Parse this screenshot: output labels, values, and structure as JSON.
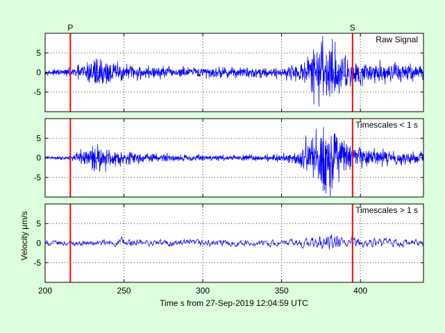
{
  "figure": {
    "background": "#ddffdd",
    "axes_background": "#ffffff",
    "signal_color": "#0000ff",
    "marker_color": "#ff0000",
    "xlabel": "Time s from 27-Sep-2019 12:04:59 UTC",
    "ylabel": "Velocity μm/s"
  },
  "chart_data": [
    {
      "type": "line",
      "title": "Raw Signal",
      "xlim": [
        200,
        440
      ],
      "ylim": [
        -10,
        10
      ],
      "xticks": [
        200,
        250,
        300,
        350,
        400
      ],
      "yticks": [
        -5,
        0,
        5
      ],
      "grid": true,
      "phase_markers": [
        {
          "label": "P",
          "x": 216
        },
        {
          "label": "S",
          "x": 395
        }
      ],
      "series": [
        {
          "envelope": [
            {
              "x": 200,
              "y": 0.5
            },
            {
              "x": 210,
              "y": 0.7
            },
            {
              "x": 218,
              "y": 1.0
            },
            {
              "x": 225,
              "y": 2.5
            },
            {
              "x": 233,
              "y": 3.8
            },
            {
              "x": 240,
              "y": 2.8
            },
            {
              "x": 250,
              "y": 2.0
            },
            {
              "x": 265,
              "y": 1.5
            },
            {
              "x": 290,
              "y": 1.3
            },
            {
              "x": 320,
              "y": 1.2
            },
            {
              "x": 350,
              "y": 1.2
            },
            {
              "x": 360,
              "y": 2.0
            },
            {
              "x": 368,
              "y": 4.5
            },
            {
              "x": 375,
              "y": 8.0
            },
            {
              "x": 380,
              "y": 9.5
            },
            {
              "x": 385,
              "y": 6.5
            },
            {
              "x": 392,
              "y": 4.0
            },
            {
              "x": 400,
              "y": 2.8
            },
            {
              "x": 420,
              "y": 2.2
            },
            {
              "x": 440,
              "y": 1.8
            }
          ]
        }
      ]
    },
    {
      "type": "line",
      "title": "Timescales < 1 s",
      "xlim": [
        200,
        440
      ],
      "ylim": [
        -10,
        10
      ],
      "xticks": [
        200,
        250,
        300,
        350,
        400
      ],
      "yticks": [
        -5,
        0,
        5
      ],
      "grid": true,
      "phase_markers": [
        {
          "label": "",
          "x": 216
        },
        {
          "label": "",
          "x": 395
        }
      ],
      "series": [
        {
          "envelope": [
            {
              "x": 200,
              "y": 0.3
            },
            {
              "x": 212,
              "y": 0.4
            },
            {
              "x": 218,
              "y": 0.7
            },
            {
              "x": 225,
              "y": 2.0
            },
            {
              "x": 233,
              "y": 3.2
            },
            {
              "x": 240,
              "y": 2.4
            },
            {
              "x": 250,
              "y": 1.5
            },
            {
              "x": 265,
              "y": 1.1
            },
            {
              "x": 290,
              "y": 0.8
            },
            {
              "x": 320,
              "y": 0.6
            },
            {
              "x": 350,
              "y": 0.9
            },
            {
              "x": 360,
              "y": 2.0
            },
            {
              "x": 368,
              "y": 5.0
            },
            {
              "x": 375,
              "y": 8.0
            },
            {
              "x": 380,
              "y": 9.5
            },
            {
              "x": 385,
              "y": 6.5
            },
            {
              "x": 392,
              "y": 3.8
            },
            {
              "x": 400,
              "y": 2.5
            },
            {
              "x": 420,
              "y": 1.7
            },
            {
              "x": 440,
              "y": 1.2
            }
          ]
        }
      ]
    },
    {
      "type": "line",
      "title": "Timescales > 1 s",
      "xlim": [
        200,
        440
      ],
      "ylim": [
        -10,
        10
      ],
      "xticks": [
        200,
        250,
        300,
        350,
        400
      ],
      "yticks": [
        -5,
        0,
        5
      ],
      "grid": true,
      "phase_markers": [
        {
          "label": "",
          "x": 216
        },
        {
          "label": "",
          "x": 395
        }
      ],
      "series": [
        {
          "envelope": [
            {
              "x": 200,
              "y": 0.7
            },
            {
              "x": 230,
              "y": 0.7
            },
            {
              "x": 245,
              "y": 1.0
            },
            {
              "x": 250,
              "y": 1.8
            },
            {
              "x": 256,
              "y": 1.0
            },
            {
              "x": 300,
              "y": 0.9
            },
            {
              "x": 350,
              "y": 0.8
            },
            {
              "x": 370,
              "y": 1.5
            },
            {
              "x": 380,
              "y": 2.6
            },
            {
              "x": 388,
              "y": 1.8
            },
            {
              "x": 400,
              "y": 1.4
            },
            {
              "x": 420,
              "y": 1.2
            },
            {
              "x": 440,
              "y": 0.8
            }
          ]
        }
      ]
    }
  ]
}
